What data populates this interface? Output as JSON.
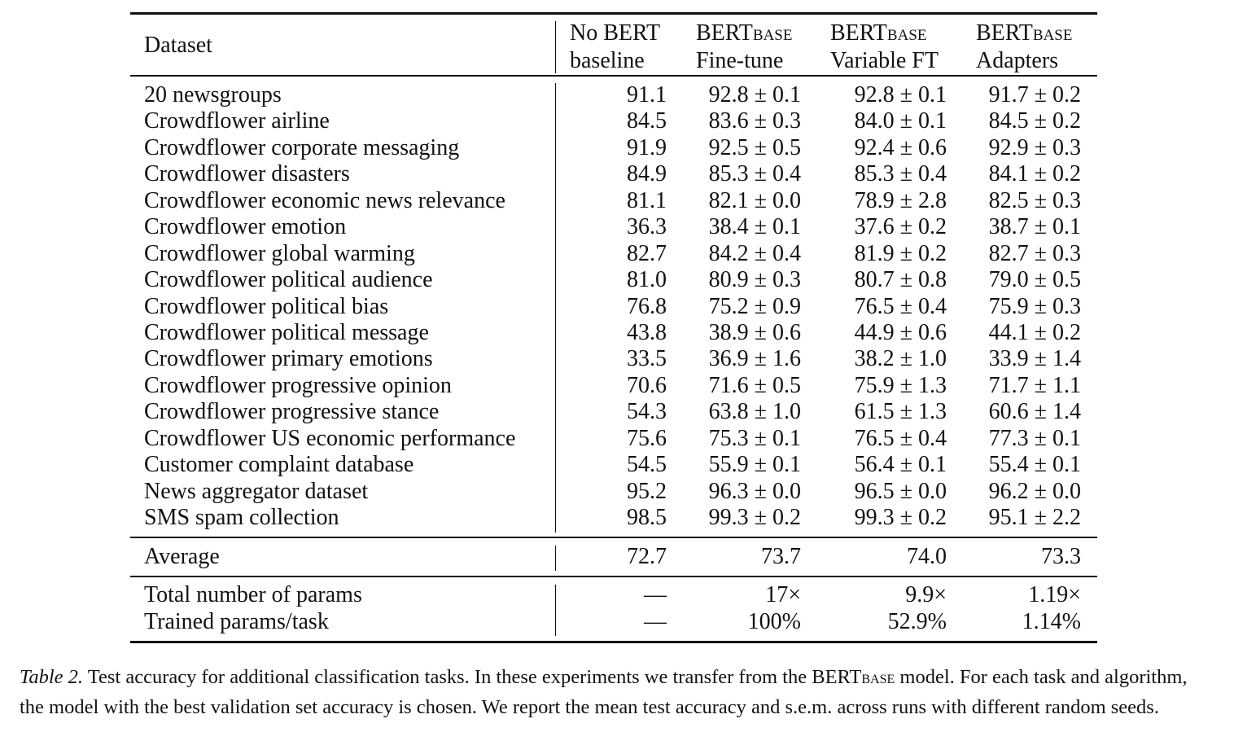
{
  "table": {
    "headers": [
      {
        "line1": "Dataset"
      },
      {
        "line1": "No BERT",
        "line2": "baseline"
      },
      {
        "line1": "BERT",
        "line1_sub": "BASE",
        "line2": "Fine-tune"
      },
      {
        "line1": "BERT",
        "line1_sub": "BASE",
        "line2": "Variable FT"
      },
      {
        "line1": "BERT",
        "line1_sub": "BASE",
        "line2": "Adapters"
      }
    ],
    "rows": [
      [
        "20 newsgroups",
        "91.1",
        "92.8 ± 0.1",
        "92.8 ± 0.1",
        "91.7 ± 0.2"
      ],
      [
        "Crowdflower airline",
        "84.5",
        "83.6 ± 0.3",
        "84.0 ± 0.1",
        "84.5 ± 0.2"
      ],
      [
        "Crowdflower corporate messaging",
        "91.9",
        "92.5 ± 0.5",
        "92.4 ± 0.6",
        "92.9 ± 0.3"
      ],
      [
        "Crowdflower disasters",
        "84.9",
        "85.3 ± 0.4",
        "85.3 ± 0.4",
        "84.1 ± 0.2"
      ],
      [
        "Crowdflower economic news relevance",
        "81.1",
        "82.1 ± 0.0",
        "78.9 ± 2.8",
        "82.5 ± 0.3"
      ],
      [
        "Crowdflower emotion",
        "36.3",
        "38.4 ± 0.1",
        "37.6 ± 0.2",
        "38.7 ± 0.1"
      ],
      [
        "Crowdflower global warming",
        "82.7",
        "84.2 ± 0.4",
        "81.9 ± 0.2",
        "82.7 ± 0.3"
      ],
      [
        "Crowdflower political audience",
        "81.0",
        "80.9 ± 0.3",
        "80.7 ± 0.8",
        "79.0 ± 0.5"
      ],
      [
        "Crowdflower political bias",
        "76.8",
        "75.2 ± 0.9",
        "76.5 ± 0.4",
        "75.9 ± 0.3"
      ],
      [
        "Crowdflower political message",
        "43.8",
        "38.9 ± 0.6",
        "44.9 ± 0.6",
        "44.1 ± 0.2"
      ],
      [
        "Crowdflower primary emotions",
        "33.5",
        "36.9 ± 1.6",
        "38.2 ± 1.0",
        "33.9 ± 1.4"
      ],
      [
        "Crowdflower progressive opinion",
        "70.6",
        "71.6 ± 0.5",
        "75.9 ± 1.3",
        "71.7 ± 1.1"
      ],
      [
        "Crowdflower progressive stance",
        "54.3",
        "63.8 ± 1.0",
        "61.5 ± 1.3",
        "60.6 ± 1.4"
      ],
      [
        "Crowdflower US economic performance",
        "75.6",
        "75.3 ± 0.1",
        "76.5 ± 0.4",
        "77.3 ± 0.1"
      ],
      [
        "Customer complaint database",
        "54.5",
        "55.9 ± 0.1",
        "56.4 ± 0.1",
        "55.4 ± 0.1"
      ],
      [
        "News aggregator dataset",
        "95.2",
        "96.3 ± 0.0",
        "96.5 ± 0.0",
        "96.2 ± 0.0"
      ],
      [
        "SMS spam collection",
        "98.5",
        "99.3 ± 0.2",
        "99.3 ± 0.2",
        "95.1 ± 2.2"
      ]
    ],
    "average": [
      "Average",
      "72.7",
      "73.7",
      "74.0",
      "73.3"
    ],
    "params": [
      [
        "Total number of params",
        "—",
        "17×",
        "9.9×",
        "1.19×"
      ],
      [
        "Trained params/task",
        "—",
        "100%",
        "52.9%",
        "1.14%"
      ]
    ]
  },
  "caption": {
    "label": "Table 2.",
    "text_before": " Test accuracy for additional classification tasks. In these experiments we transfer from the BERT",
    "text_sub": "BASE",
    "text_after": " model. For each task and algorithm, the model with the best validation set accuracy is chosen. We report the mean test accuracy and s.e.m. across runs with different random seeds."
  }
}
